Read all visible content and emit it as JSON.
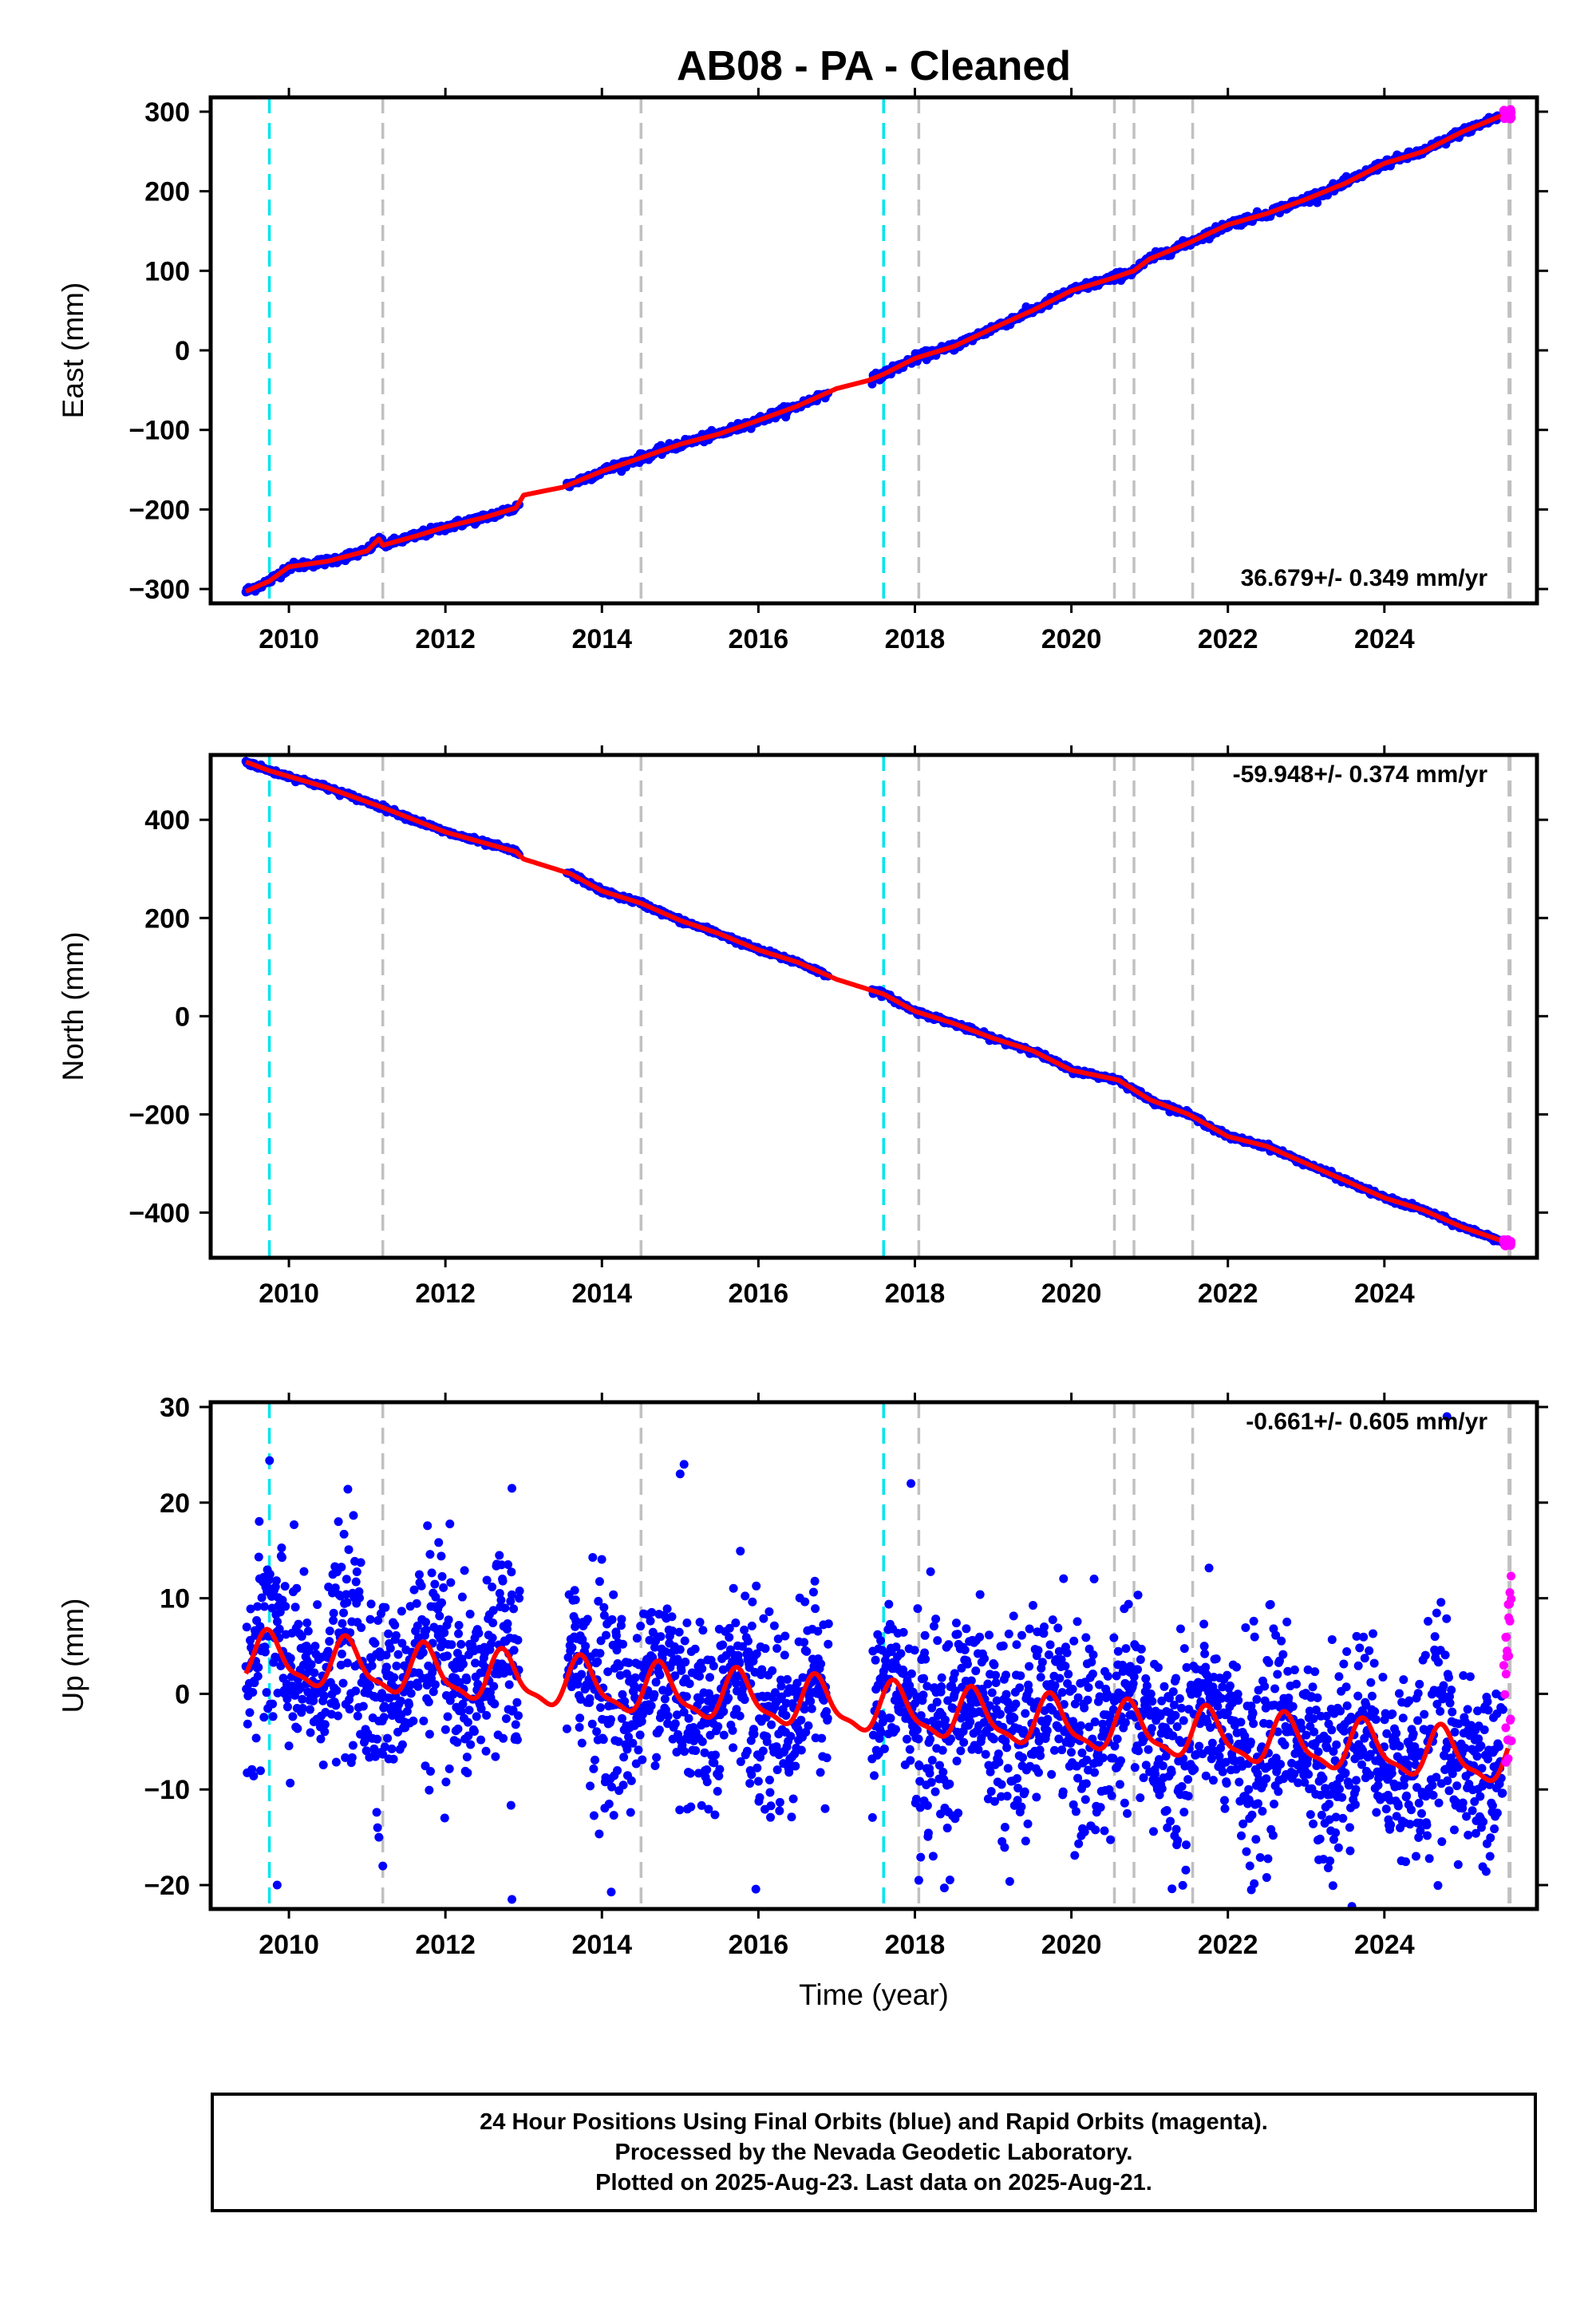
{
  "figure": {
    "title": "AB08  - PA - Cleaned",
    "xlabel": "Time (year)"
  },
  "footer": {
    "line1": "24 Hour Positions Using Final Orbits (blue) and Rapid Orbits (magenta).",
    "line2": "Processed by the Nevada Geodetic Laboratory.",
    "line3": "Plotted on 2025-Aug-23. Last data on 2025-Aug-21."
  },
  "colors": {
    "final_orbits": "#0000ff",
    "rapid_orbits": "#ff00ff",
    "model_fit": "#ff0000",
    "equipment_change_lines": "#00e5ee",
    "earthquake_lines": "#c0c0c0"
  },
  "chart_data": [
    {
      "type": "scatter",
      "panel": "East",
      "ylabel": "East (mm)",
      "rate": "36.679+/- 0.349 mm/yr",
      "rate_position": "bottom-right",
      "xlim": [
        2009.0,
        2025.95
      ],
      "ylim": [
        -318,
        318
      ],
      "xticks": [
        2010,
        2012,
        2014,
        2016,
        2018,
        2020,
        2022,
        2024
      ],
      "yticks": [
        -300,
        -200,
        -100,
        0,
        100,
        200,
        300
      ],
      "ytick_labels": [
        "−300",
        "−200",
        "−100",
        "0",
        "100",
        "200",
        "300"
      ],
      "grid": false,
      "trend": {
        "x": [
          2009.45,
          2009.75,
          2010.0,
          2010.5,
          2011.0,
          2011.15,
          2011.2,
          2011.6,
          2012.0,
          2012.5,
          2012.9,
          2013.0,
          2013.5,
          2014.0,
          2014.5,
          2015.0,
          2015.5,
          2016.0,
          2016.5,
          2017.0,
          2017.4,
          2017.6,
          2018.0,
          2018.5,
          2019.0,
          2019.5,
          2020.0,
          2020.5,
          2020.8,
          2021.0,
          2021.5,
          2022.0,
          2022.5,
          2023.0,
          2023.5,
          2024.0,
          2024.5,
          2025.0,
          2025.55
        ],
        "y": [
          -303,
          -290,
          -272,
          -265,
          -252,
          -237,
          -245,
          -234,
          -222,
          -210,
          -198,
          -182,
          -172,
          -152,
          -135,
          -118,
          -105,
          -88,
          -70,
          -48,
          -38,
          -30,
          -10,
          5,
          28,
          50,
          75,
          90,
          100,
          115,
          135,
          158,
          172,
          190,
          210,
          235,
          250,
          275,
          297
        ]
      },
      "noise_mm": 5,
      "rapid_orbits": {
        "x_range": [
          2025.52,
          2025.63
        ],
        "y_range": [
          290,
          304
        ]
      }
    },
    {
      "type": "scatter",
      "panel": "North",
      "ylabel": "North (mm)",
      "rate": "-59.948+/- 0.374 mm/yr",
      "rate_position": "top-right",
      "xlim": [
        2009.0,
        2025.95
      ],
      "ylim": [
        -492,
        532
      ],
      "xticks": [
        2010,
        2012,
        2014,
        2016,
        2018,
        2020,
        2022,
        2024
      ],
      "yticks": [
        -400,
        -200,
        0,
        200,
        400
      ],
      "ytick_labels": [
        "−400",
        "−200",
        "0",
        "200",
        "400"
      ],
      "grid": false,
      "trend": {
        "x": [
          2009.45,
          2009.75,
          2010.5,
          2011.2,
          2012.0,
          2012.9,
          2013.0,
          2013.6,
          2014.0,
          2014.5,
          2015.0,
          2015.5,
          2016.0,
          2016.5,
          2017.0,
          2017.6,
          2018.0,
          2018.5,
          2019.0,
          2019.5,
          2020.0,
          2020.6,
          2021.0,
          2021.5,
          2022.0,
          2022.5,
          2023.0,
          2023.5,
          2024.0,
          2024.5,
          2025.0,
          2025.55
        ],
        "y": [
          518,
          500,
          465,
          425,
          375,
          335,
          320,
          290,
          255,
          230,
          195,
          168,
          135,
          110,
          75,
          45,
          10,
          -15,
          -45,
          -70,
          -110,
          -130,
          -170,
          -200,
          -245,
          -265,
          -300,
          -335,
          -370,
          -395,
          -430,
          -460
        ]
      },
      "noise_mm": 5,
      "rapid_orbits": {
        "x_range": [
          2025.52,
          2025.63
        ],
        "y_range": [
          -468,
          -455
        ]
      }
    },
    {
      "type": "scatter",
      "panel": "Up",
      "ylabel": "Up (mm)",
      "rate": "-0.661+/- 0.605 mm/yr",
      "rate_position": "top-right",
      "xlim": [
        2009.0,
        2025.95
      ],
      "ylim": [
        -22.5,
        30.5
      ],
      "xticks": [
        2010,
        2012,
        2014,
        2016,
        2018,
        2020,
        2022,
        2024
      ],
      "yticks": [
        -20,
        -10,
        0,
        10,
        20,
        30
      ],
      "ytick_labels": [
        "−20",
        "−10",
        "0",
        "10",
        "20",
        "30"
      ],
      "grid": false,
      "seasonal_model": {
        "start": 2009.45,
        "end": 2025.58,
        "intercept_at_2009": 4.0,
        "slope_mm_per_yr": -0.661,
        "annual_amplitude_mm": 2.5,
        "annual_peak_fraction_of_year": 0.75
      },
      "noise_mm": 5,
      "outliers": {
        "x": [
          2012.85,
          2012.85,
          2017.95,
          2018.05,
          2024.8,
          2015.05,
          2015.0,
          2011.2,
          2011.15,
          2022.3,
          2009.85
        ],
        "y": [
          21.5,
          -21.5,
          22,
          -19.5,
          29,
          24,
          23,
          -18,
          -15,
          -20.5,
          -20
        ]
      },
      "rapid_orbits": {
        "x_range": [
          2025.52,
          2025.63
        ],
        "y_range": [
          -8,
          13
        ]
      }
    }
  ],
  "event_lines": {
    "equipment_change": [
      2009.75,
      2017.6
    ],
    "earthquake": [
      2011.2,
      2014.5,
      2018.05,
      2020.55,
      2020.8,
      2021.55,
      2025.6
    ]
  }
}
